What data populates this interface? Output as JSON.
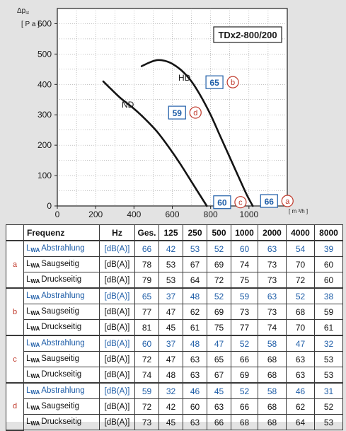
{
  "chart_data": {
    "type": "line",
    "title": "TDx2-800/200",
    "ylabel": "Δp",
    "ylabel_sub": "st",
    "yunit": "[ P a ]",
    "xunit": "[ m ³/h ]",
    "xlim": [
      0,
      1200
    ],
    "ylim": [
      0,
      650
    ],
    "xticks": [
      0,
      200,
      400,
      600,
      800,
      1000
    ],
    "yticks": [
      0,
      100,
      200,
      300,
      400,
      500,
      600
    ],
    "grid": true,
    "series": [
      {
        "name": "HD",
        "x": [
          440,
          480,
          520,
          560,
          600,
          650,
          700,
          750,
          800,
          850,
          900,
          950,
          990,
          1020
        ],
        "y": [
          460,
          472,
          480,
          478,
          468,
          445,
          410,
          360,
          300,
          230,
          160,
          90,
          35,
          0
        ]
      },
      {
        "name": "ND",
        "x": [
          240,
          280,
          330,
          400,
          460,
          520,
          580,
          640,
          700,
          750,
          780
        ],
        "y": [
          410,
          385,
          355,
          320,
          285,
          245,
          195,
          140,
          80,
          30,
          0
        ]
      }
    ],
    "annotations": [
      {
        "value": "65",
        "letter": "b",
        "x": 820,
        "y": 405
      },
      {
        "value": "59",
        "letter": "d",
        "x": 625,
        "y": 305
      },
      {
        "value": "60",
        "letter": "c",
        "x": 860,
        "y": 10
      },
      {
        "value": "66",
        "letter": "a",
        "x": 1105,
        "y": 14
      }
    ]
  },
  "table": {
    "headers": [
      "",
      "Frequenz",
      "Hz",
      "Ges.",
      "125",
      "250",
      "500",
      "1000",
      "2000",
      "4000",
      "8000"
    ],
    "groups": [
      {
        "letter": "a",
        "rows": [
          {
            "label": "Abstrahlung",
            "unit": "[dB(A)]",
            "values": [
              "66",
              "42",
              "53",
              "52",
              "60",
              "63",
              "54",
              "39"
            ],
            "blue": true
          },
          {
            "label": "Saugseitig",
            "unit": "[dB(A)]",
            "values": [
              "78",
              "53",
              "67",
              "69",
              "74",
              "73",
              "70",
              "60"
            ],
            "blue": false
          },
          {
            "label": "Druckseitig",
            "unit": "[dB(A)]",
            "values": [
              "79",
              "53",
              "64",
              "72",
              "75",
              "73",
              "72",
              "60"
            ],
            "blue": false
          }
        ]
      },
      {
        "letter": "b",
        "rows": [
          {
            "label": "Abstrahlung",
            "unit": "[dB(A)]",
            "values": [
              "65",
              "37",
              "48",
              "52",
              "59",
              "63",
              "52",
              "38"
            ],
            "blue": true
          },
          {
            "label": "Saugseitig",
            "unit": "[dB(A)]",
            "values": [
              "77",
              "47",
              "62",
              "69",
              "73",
              "73",
              "68",
              "59"
            ],
            "blue": false
          },
          {
            "label": "Druckseitig",
            "unit": "[dB(A)]",
            "values": [
              "81",
              "45",
              "61",
              "75",
              "77",
              "74",
              "70",
              "61"
            ],
            "blue": false
          }
        ]
      },
      {
        "letter": "c",
        "rows": [
          {
            "label": "Abstrahlung",
            "unit": "[dB(A)]",
            "values": [
              "60",
              "37",
              "48",
              "47",
              "52",
              "58",
              "47",
              "32"
            ],
            "blue": true
          },
          {
            "label": "Saugseitig",
            "unit": "[dB(A)]",
            "values": [
              "72",
              "47",
              "63",
              "65",
              "66",
              "68",
              "63",
              "53"
            ],
            "blue": false
          },
          {
            "label": "Druckseitig",
            "unit": "[dB(A)]",
            "values": [
              "74",
              "48",
              "63",
              "67",
              "69",
              "68",
              "63",
              "53"
            ],
            "blue": false
          }
        ]
      },
      {
        "letter": "d",
        "rows": [
          {
            "label": "Abstrahlung",
            "unit": "[dB(A)]",
            "values": [
              "59",
              "32",
              "46",
              "45",
              "52",
              "58",
              "46",
              "31"
            ],
            "blue": true
          },
          {
            "label": "Saugseitig",
            "unit": "[dB(A)]",
            "values": [
              "72",
              "42",
              "60",
              "63",
              "66",
              "68",
              "62",
              "52"
            ],
            "blue": false
          },
          {
            "label": "Druckseitig",
            "unit": "[dB(A)]",
            "values": [
              "73",
              "45",
              "63",
              "66",
              "68",
              "68",
              "64",
              "53"
            ],
            "blue": false
          }
        ]
      }
    ],
    "lwa_prefix": "L",
    "lwa_sub": "WA"
  },
  "colors": {
    "blue": "#1f5ea8",
    "red": "#c0392b",
    "grid": "#8a8a8a",
    "curve": "#141414"
  }
}
